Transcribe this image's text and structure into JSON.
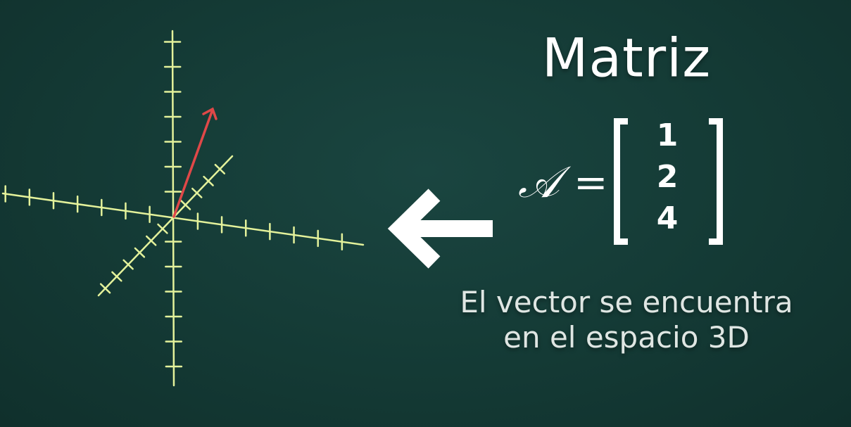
{
  "title": "Matriz",
  "equation": {
    "symbol": "𝒜",
    "equals": "=",
    "entries": [
      "1",
      "2",
      "4"
    ]
  },
  "caption": {
    "line1": "El vector se encuentra",
    "line2": "en el espacio 3D"
  },
  "colors": {
    "background": "#163d38",
    "axis": "#e4f29b",
    "vector": "#e04848",
    "text": "#ffffff",
    "caption": "#dfe6e3"
  },
  "icons": [
    "left-arrow-icon"
  ]
}
